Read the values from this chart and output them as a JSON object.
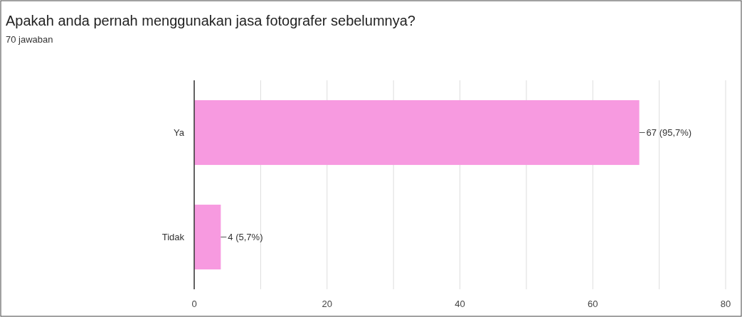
{
  "chart_data": {
    "type": "bar",
    "orientation": "horizontal",
    "title": "Apakah anda pernah menggunakan jasa fotografer sebelumnya?",
    "subtitle": "70 jawaban",
    "categories": [
      "Ya",
      "Tidak"
    ],
    "values": [
      67,
      4
    ],
    "value_labels": [
      "67 (95,7%)",
      "4 (5,7%)"
    ],
    "color": "#f79ae0",
    "xlim": [
      0,
      80
    ],
    "xticks": [
      0,
      {
        "value": 10,
        "label": null
      },
      20,
      {
        "value": 30,
        "label": null
      },
      40,
      {
        "value": 50,
        "label": null
      },
      60,
      {
        "value": 70,
        "label": null
      },
      80
    ],
    "grid": "x"
  }
}
